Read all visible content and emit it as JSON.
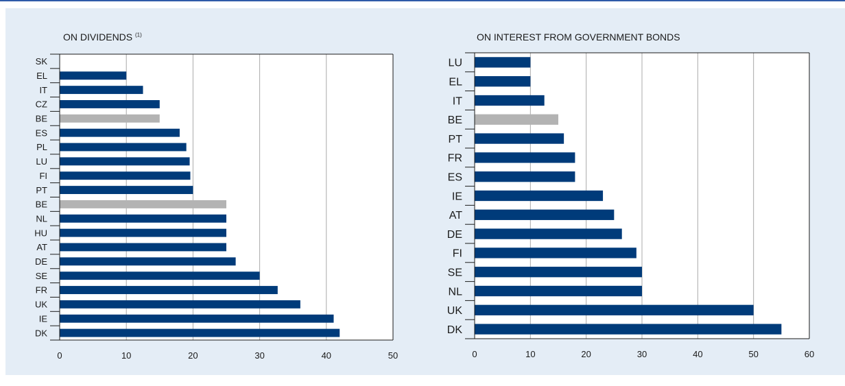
{
  "colors": {
    "bar": "#003b7a",
    "highlight": "#b3b3b3",
    "grid": "#a9a9a9",
    "panel": "#e4edf6",
    "rule": "#2f5aa8"
  },
  "chart_data": [
    {
      "type": "bar",
      "orientation": "horizontal",
      "title": "ON DIVIDENDS",
      "title_note": "(1)",
      "categories": [
        "SK",
        "EL",
        "IT",
        "CZ",
        "BE",
        "ES",
        "PL",
        "LU",
        "FI",
        "PT",
        "BE",
        "NL",
        "HU",
        "AT",
        "DE",
        "SE",
        "FR",
        "UK",
        "IE",
        "DK"
      ],
      "values": [
        0,
        10,
        12.5,
        15,
        15,
        18,
        19,
        19.5,
        19.6,
        20,
        25,
        25,
        25,
        25,
        26.4,
        30,
        32.7,
        36.1,
        41.1,
        42
      ],
      "highlight": [
        false,
        false,
        false,
        false,
        true,
        false,
        false,
        false,
        false,
        false,
        true,
        false,
        false,
        false,
        false,
        false,
        false,
        false,
        false,
        false
      ],
      "xlim": [
        0,
        50
      ],
      "xticks": [
        "0",
        "10",
        "20",
        "30",
        "40",
        "50"
      ],
      "grid": "vertical"
    },
    {
      "type": "bar",
      "orientation": "horizontal",
      "title": "ON INTEREST FROM GOVERNMENT BONDS",
      "categories": [
        "LU",
        "EL",
        "IT",
        "BE",
        "PT",
        "FR",
        "ES",
        "IE",
        "AT",
        "DE",
        "FI",
        "SE",
        "NL",
        "UK",
        "DK"
      ],
      "values": [
        10,
        10,
        12.5,
        15,
        16,
        18,
        18,
        23,
        25,
        26.4,
        29,
        30,
        30,
        50,
        55
      ],
      "highlight": [
        false,
        false,
        false,
        true,
        false,
        false,
        false,
        false,
        false,
        false,
        false,
        false,
        false,
        false,
        false
      ],
      "xlim": [
        0,
        60
      ],
      "xticks": [
        "0",
        "10",
        "20",
        "30",
        "40",
        "50",
        "60"
      ],
      "grid": "vertical"
    }
  ]
}
